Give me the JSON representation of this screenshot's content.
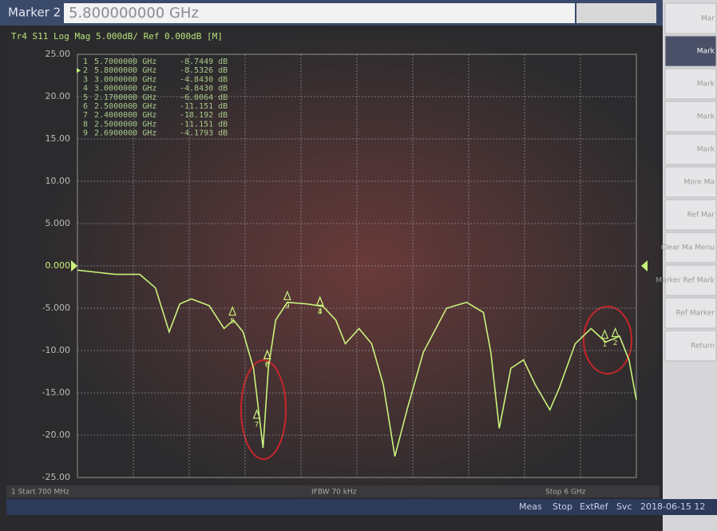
{
  "toolbar": {
    "label": "Marker 2",
    "input": "5.800000000 GHz"
  },
  "softkeys": [
    "Mar",
    "Mark",
    "Mark",
    "Mark",
    "Mark",
    "More Ma",
    "Ref Mar",
    "Clear Ma Menu",
    "Marker Ref Mark",
    "Ref Marker",
    "Return"
  ],
  "chart_data": {
    "type": "line",
    "title": "Tr4 S11 Log Mag 5.000dB/ Ref 0.000dB [M]",
    "x": [
      0.7,
      1.06,
      1.29,
      1.44,
      1.57,
      1.67,
      1.78,
      1.95,
      2.09,
      2.18,
      2.27,
      2.37,
      2.46,
      2.51,
      2.58,
      2.69,
      2.88,
      3.03,
      3.15,
      3.24,
      3.37,
      3.49,
      3.6,
      3.71,
      3.83,
      3.98,
      4.2,
      4.39,
      4.55,
      4.62,
      4.7,
      4.81,
      4.93,
      5.04,
      5.18,
      5.27,
      5.42,
      5.57,
      5.71,
      5.84,
      5.93,
      6.0
    ],
    "series": [
      {
        "color": "#c9f27c",
        "values": [
          -0.5,
          -1.0,
          -1.0,
          -2.6,
          -7.8,
          -4.5,
          -3.9,
          -4.7,
          -7.4,
          -6.4,
          -7.8,
          -12.1,
          -21.5,
          -12.1,
          -6.4,
          -4.3,
          -4.5,
          -4.8,
          -6.4,
          -9.2,
          -7.4,
          -9.2,
          -14,
          -22.5,
          -16.8,
          -10.2,
          -5,
          -4.3,
          -5.5,
          -10.2,
          -19.2,
          -12.1,
          -11.1,
          -14,
          -17,
          -14.4,
          -9.2,
          -7.4,
          -9,
          -8.3,
          -11.1,
          -15.8
        ]
      }
    ],
    "xlim": [
      0.7,
      6.0
    ],
    "xticks": [
      0.7,
      1.23,
      1.76,
      2.29,
      2.82,
      3.35,
      3.88,
      4.41,
      4.94,
      5.47,
      6.0
    ],
    "ylim": [
      -25,
      25
    ],
    "yticks": [
      {
        "value": 25,
        "label": "25.00"
      },
      {
        "value": 20,
        "label": "20.00"
      },
      {
        "value": 15,
        "label": "15.00"
      },
      {
        "value": 10,
        "label": "10.00"
      },
      {
        "value": 5,
        "label": "5.000"
      },
      {
        "value": 0,
        "label": "0.000"
      },
      {
        "value": -5,
        "label": "-5.000"
      },
      {
        "value": -10,
        "label": "-10.00"
      },
      {
        "value": -15,
        "label": "-15.00"
      },
      {
        "value": -20,
        "label": "-20.00"
      },
      {
        "value": -25,
        "label": "-25.00"
      }
    ],
    "grid": true,
    "markers": {
      "names": [
        "1",
        "2",
        "3",
        "4",
        "5",
        "6",
        "7",
        "8",
        "9"
      ],
      "active": 1,
      "x": [
        5.7,
        5.8,
        3.0,
        3.0,
        2.17,
        2.5,
        2.4,
        2.5,
        2.69
      ],
      "x_labels": [
        "5.7000000 GHz",
        "5.8000000 GHz",
        "3.0000000 GHz",
        "3.0000000 GHz",
        "2.1700000 GHz",
        "2.5000000 GHz",
        "2.4000000 GHz",
        "2.5000000 GHz",
        "2.6900000 GHz"
      ],
      "values": [
        -8.7449,
        -8.5326,
        -4.843,
        -4.843,
        -6.0064,
        -11.151,
        -18.192,
        -11.151,
        -4.1793
      ],
      "value_labels": [
        "-8.7449 dB",
        "-8.5326 dB",
        "-4.8430 dB",
        "-4.8430 dB",
        "-6.0064 dB",
        "-11.151 dB",
        "-18.192 dB",
        "-11.151 dB",
        "-4.1793 dB"
      ]
    },
    "start_label": "1 Start 700 MHz",
    "ifbw_label": "IFBW 70 kHz",
    "stop_label": "Stop 6 GHz"
  },
  "status_bar": [
    "Meas",
    "Stop",
    "ExtRef",
    "Svc",
    "2018-06-15 12"
  ]
}
